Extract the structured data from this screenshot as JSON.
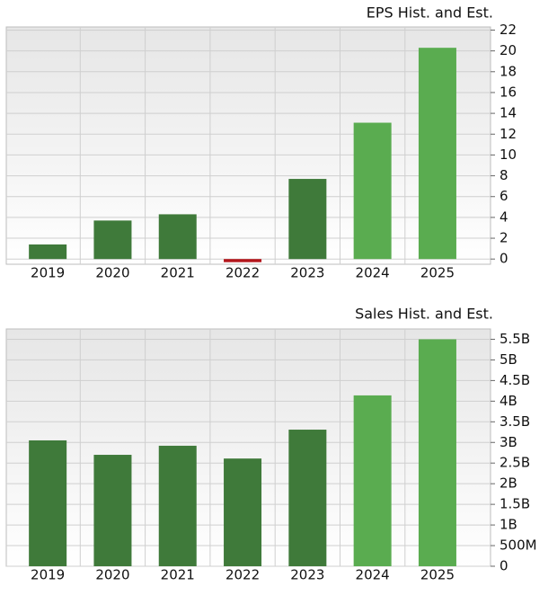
{
  "chart_data": [
    {
      "type": "bar",
      "title": "EPS Hist. and Est.",
      "categories": [
        "2019",
        "2020",
        "2021",
        "2022",
        "2023",
        "2024",
        "2025"
      ],
      "values": [
        1.4,
        3.7,
        4.3,
        -0.3,
        7.7,
        13.1,
        20.3
      ],
      "colors": [
        "#3f7a3a",
        "#3f7a3a",
        "#3f7a3a",
        "#b3151b",
        "#3f7a3a",
        "#5aac50",
        "#5aac50"
      ],
      "ylim": [
        -0.5,
        22.3
      ],
      "yticks": [
        0,
        2,
        4,
        6,
        8,
        10,
        12,
        14,
        16,
        18,
        20,
        22
      ],
      "grid": true
    },
    {
      "type": "bar",
      "title": "Sales Hist. and Est.",
      "categories": [
        "2019",
        "2020",
        "2021",
        "2022",
        "2023",
        "2024",
        "2025"
      ],
      "values": [
        3050000000,
        2700000000,
        2920000000,
        2610000000,
        3310000000,
        4140000000,
        5500000000
      ],
      "colors": [
        "#3f7a3a",
        "#3f7a3a",
        "#3f7a3a",
        "#3f7a3a",
        "#3f7a3a",
        "#5aac50",
        "#5aac50"
      ],
      "ylim": [
        0,
        5750000000
      ],
      "yticks": [
        0,
        {
          "value": 500000000,
          "label": "500M"
        },
        {
          "value": 1000000000,
          "label": "1B"
        },
        {
          "value": 1500000000,
          "label": "1.5B"
        },
        {
          "value": 2000000000,
          "label": "2B"
        },
        {
          "value": 2500000000,
          "label": "2.5B"
        },
        {
          "value": 3000000000,
          "label": "3B"
        },
        {
          "value": 3500000000,
          "label": "3.5B"
        },
        {
          "value": 4000000000,
          "label": "4B"
        },
        {
          "value": 4500000000,
          "label": "4.5B"
        },
        {
          "value": 5000000000,
          "label": "5B"
        },
        {
          "value": 5500000000,
          "label": "5.5B"
        }
      ],
      "grid": true
    }
  ]
}
